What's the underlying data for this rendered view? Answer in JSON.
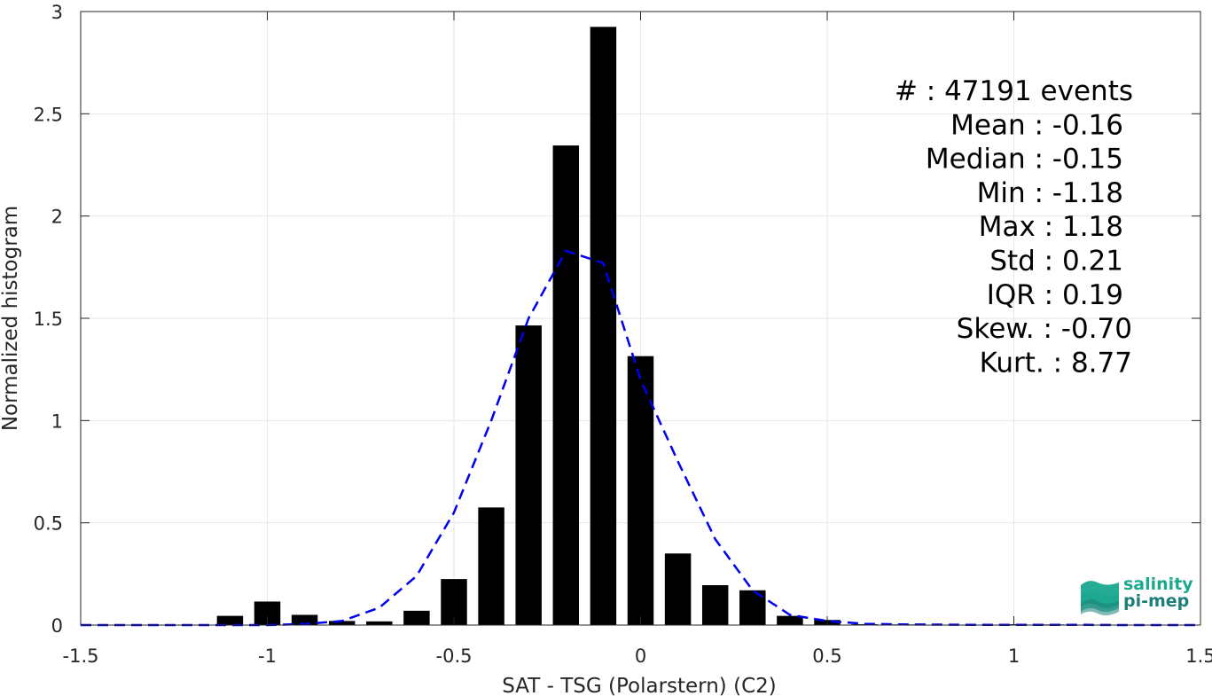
{
  "chart_data": {
    "type": "bar",
    "xlabel": "SAT - TSG (Polarstern) (C2)",
    "ylabel": "Normalized histogram",
    "xlim": [
      -1.5,
      1.5
    ],
    "ylim": [
      0,
      3
    ],
    "grid": true,
    "xticks": [
      -1.5,
      -1,
      -0.5,
      0,
      0.5,
      1,
      1.5
    ],
    "xtick_labels": [
      "-1.5",
      "-1",
      "-0.5",
      "0",
      "0.5",
      "1",
      "1.5"
    ],
    "yticks": [
      0,
      0.5,
      1,
      1.5,
      2,
      2.5,
      3
    ],
    "ytick_labels": [
      "0",
      "0.5",
      "1",
      "1.5",
      "2",
      "2.5",
      "3"
    ],
    "bar_color": "#000000",
    "bar_width": 0.07,
    "bars": [
      {
        "x": -1.1,
        "y": 0.045
      },
      {
        "x": -1.0,
        "y": 0.115
      },
      {
        "x": -0.9,
        "y": 0.05
      },
      {
        "x": -0.8,
        "y": 0.02
      },
      {
        "x": -0.7,
        "y": 0.018
      },
      {
        "x": -0.6,
        "y": 0.07
      },
      {
        "x": -0.5,
        "y": 0.225
      },
      {
        "x": -0.4,
        "y": 0.575
      },
      {
        "x": -0.3,
        "y": 1.465
      },
      {
        "x": -0.2,
        "y": 2.345
      },
      {
        "x": -0.1,
        "y": 2.925
      },
      {
        "x": 0.0,
        "y": 1.315
      },
      {
        "x": 0.1,
        "y": 0.35
      },
      {
        "x": 0.2,
        "y": 0.195
      },
      {
        "x": 0.3,
        "y": 0.17
      },
      {
        "x": 0.4,
        "y": 0.045
      },
      {
        "x": 0.5,
        "y": 0.025
      },
      {
        "x": 0.6,
        "y": 0.004
      },
      {
        "x": 0.7,
        "y": 0.003
      },
      {
        "x": 0.8,
        "y": 0.002
      },
      {
        "x": 0.9,
        "y": 0.002
      },
      {
        "x": 1.0,
        "y": 0.004
      },
      {
        "x": 1.1,
        "y": 0.003
      }
    ],
    "fit_curve": {
      "color": "#0000ee",
      "style": "dashed",
      "x": [
        -1.5,
        -1.4,
        -1.3,
        -1.2,
        -1.1,
        -1.0,
        -0.9,
        -0.8,
        -0.7,
        -0.6,
        -0.5,
        -0.4,
        -0.3,
        -0.2,
        -0.1,
        0.0,
        0.1,
        0.2,
        0.3,
        0.4,
        0.5,
        0.6,
        0.7,
        0.8,
        0.9,
        1.0,
        1.1,
        1.2,
        1.3,
        1.4,
        1.5
      ],
      "y": [
        0,
        0,
        0,
        0,
        0,
        0,
        0.005,
        0.02,
        0.085,
        0.24,
        0.55,
        1.0,
        1.5,
        1.83,
        1.77,
        1.2,
        0.8,
        0.42,
        0.17,
        0.05,
        0.02,
        0.006,
        0.003,
        0.002,
        0.001,
        0.001,
        0.001,
        0.001,
        0,
        0,
        0
      ]
    },
    "annotations": [
      "#  : 47191 events",
      "Mean : -0.16",
      "Median : -0.15",
      "Min : -1.18",
      "Max : 1.18",
      "Std : 0.21",
      "IQR : 0.19",
      "Skew. : -0.70",
      "Kurt. : 8.77"
    ]
  },
  "logo": {
    "line1": "salinity",
    "line2": "pi-mep",
    "color_top": "#1aa88e",
    "color_bottom": "#1e7f78"
  }
}
